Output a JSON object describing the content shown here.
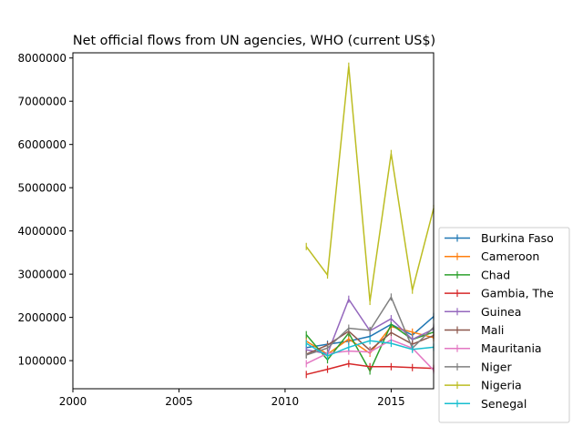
{
  "chart_data": {
    "type": "line",
    "title": "Net official flows from UN agencies, WHO (current US$)",
    "xlabel": "",
    "ylabel": "",
    "xlim": [
      2000,
      2017
    ],
    "ylim": [
      350000,
      8120000
    ],
    "xticks": [
      2000,
      2005,
      2010,
      2015
    ],
    "yticks": [
      1000000,
      2000000,
      3000000,
      4000000,
      5000000,
      6000000,
      7000000,
      8000000
    ],
    "legend_position": "lower-right-outside",
    "grid": false,
    "x": [
      2011,
      2012,
      2013,
      2014,
      2015,
      2016,
      2017
    ],
    "series": [
      {
        "name": "Burkina Faso",
        "color": "#1f77b4",
        "values": [
          1300000,
          1380000,
          1450000,
          1560000,
          1840000,
          1590000,
          2020000
        ]
      },
      {
        "name": "Cameroon",
        "color": "#ff7f0e",
        "values": [
          1450000,
          1150000,
          1500000,
          1170000,
          1790000,
          1660000,
          1530000
        ]
      },
      {
        "name": "Chad",
        "color": "#2ca02c",
        "values": [
          1600000,
          1020000,
          1640000,
          760000,
          1840000,
          1490000,
          1660000
        ]
      },
      {
        "name": "Gambia, The",
        "color": "#d62728",
        "values": [
          680000,
          800000,
          930000,
          860000,
          860000,
          840000,
          820000
        ]
      },
      {
        "name": "Guinea",
        "color": "#9467bd",
        "values": [
          1250000,
          1160000,
          2420000,
          1690000,
          1970000,
          1490000,
          1730000
        ]
      },
      {
        "name": "Mali",
        "color": "#8c564b",
        "values": [
          1150000,
          1360000,
          1680000,
          1240000,
          1650000,
          1380000,
          1580000
        ]
      },
      {
        "name": "Mauritania",
        "color": "#e377c2",
        "values": [
          930000,
          1170000,
          1220000,
          1200000,
          1480000,
          1290000,
          780000
        ]
      },
      {
        "name": "Niger",
        "color": "#7f7f7f",
        "values": [
          1130000,
          1290000,
          1750000,
          1700000,
          2470000,
          1290000,
          1770000
        ]
      },
      {
        "name": "Nigeria",
        "color": "#bcbd22",
        "values": [
          3640000,
          2980000,
          7810000,
          2370000,
          5790000,
          2630000,
          4520000
        ]
      },
      {
        "name": "Senegal",
        "color": "#17becf",
        "values": [
          1400000,
          1110000,
          1310000,
          1460000,
          1400000,
          1260000,
          1310000
        ]
      }
    ]
  }
}
